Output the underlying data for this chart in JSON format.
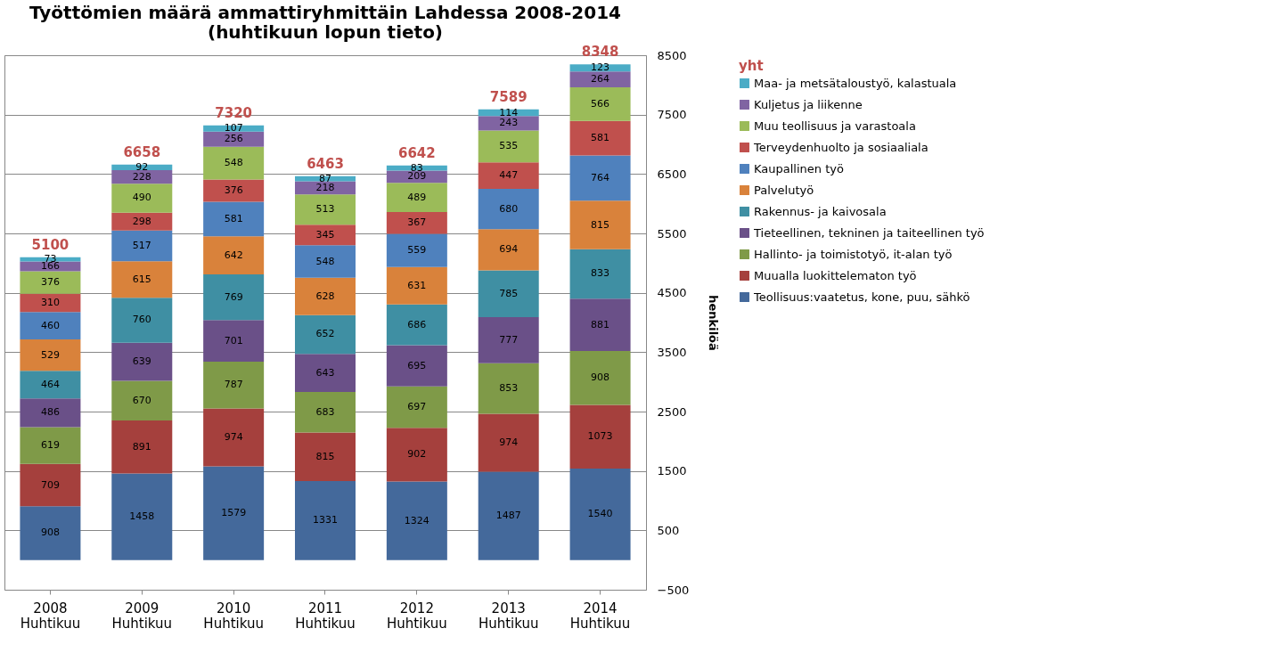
{
  "chart_data": {
    "type": "bar",
    "stacked": true,
    "title": "Työttömien määrä ammattiryhmittäin Lahdessa 2008-2014\n(huhtikuun lopun tieto)",
    "ylabel": "henkilöä",
    "legend_title": "yht",
    "legend": "right",
    "grid": "y",
    "data_labels": true,
    "categories": [
      "2008\nHuhtikuu",
      "2009\nHuhtikuu",
      "2010\nHuhtikuu",
      "2011\nHuhtikuu",
      "2012\nHuhtikuu",
      "2013\nHuhtikuu",
      "2014\nHuhtikuu"
    ],
    "ylim": [
      -500,
      8500
    ],
    "yticks": [
      -500,
      500,
      1500,
      2500,
      3500,
      4500,
      5500,
      6500,
      7500,
      8500
    ],
    "totals": [
      "5100",
      "6658",
      "7320",
      "6463",
      "6642",
      "7589",
      "8348"
    ],
    "series": [
      {
        "name": "Teollisuus:vaatetus, kone, puu, sähkö",
        "color": "#44699b",
        "values": [
          908,
          1458,
          1579,
          1331,
          1324,
          1487,
          1540
        ]
      },
      {
        "name": "Muualla luokittelematon työ",
        "color": "#a5403d",
        "values": [
          709,
          891,
          974,
          815,
          902,
          974,
          1073
        ]
      },
      {
        "name": "Hallinto- ja toimistotyö, it-alan työ",
        "color": "#7f9a48",
        "values": [
          619,
          670,
          787,
          683,
          697,
          853,
          908
        ]
      },
      {
        "name": "Tieteellinen, tekninen ja taiteellinen työ",
        "color": "#6a5088",
        "values": [
          486,
          639,
          701,
          643,
          695,
          777,
          881
        ]
      },
      {
        "name": "Rakennus- ja kaivosala",
        "color": "#3f8fa3",
        "values": [
          464,
          760,
          769,
          652,
          686,
          785,
          833
        ]
      },
      {
        "name": "Palvelutyö",
        "color": "#d9823b",
        "values": [
          529,
          615,
          642,
          628,
          631,
          694,
          815
        ]
      },
      {
        "name": "Kaupallinen työ",
        "color": "#4f81bd",
        "values": [
          460,
          517,
          581,
          548,
          559,
          680,
          764
        ]
      },
      {
        "name": "Terveydenhuolto ja sosiaaliala",
        "color": "#c0504d",
        "values": [
          310,
          298,
          376,
          345,
          367,
          447,
          581
        ]
      },
      {
        "name": "Muu teollisuus ja varastoala",
        "color": "#9bbb59",
        "values": [
          376,
          490,
          548,
          513,
          489,
          535,
          566
        ]
      },
      {
        "name": "Kuljetus ja liikenne",
        "color": "#8064a2",
        "values": [
          166,
          228,
          256,
          218,
          209,
          243,
          264
        ]
      },
      {
        "name": "Maa- ja metsätaloustyö, kalastuala",
        "color": "#4bacc6",
        "values": [
          73,
          92,
          107,
          87,
          83,
          114,
          123
        ]
      }
    ]
  }
}
